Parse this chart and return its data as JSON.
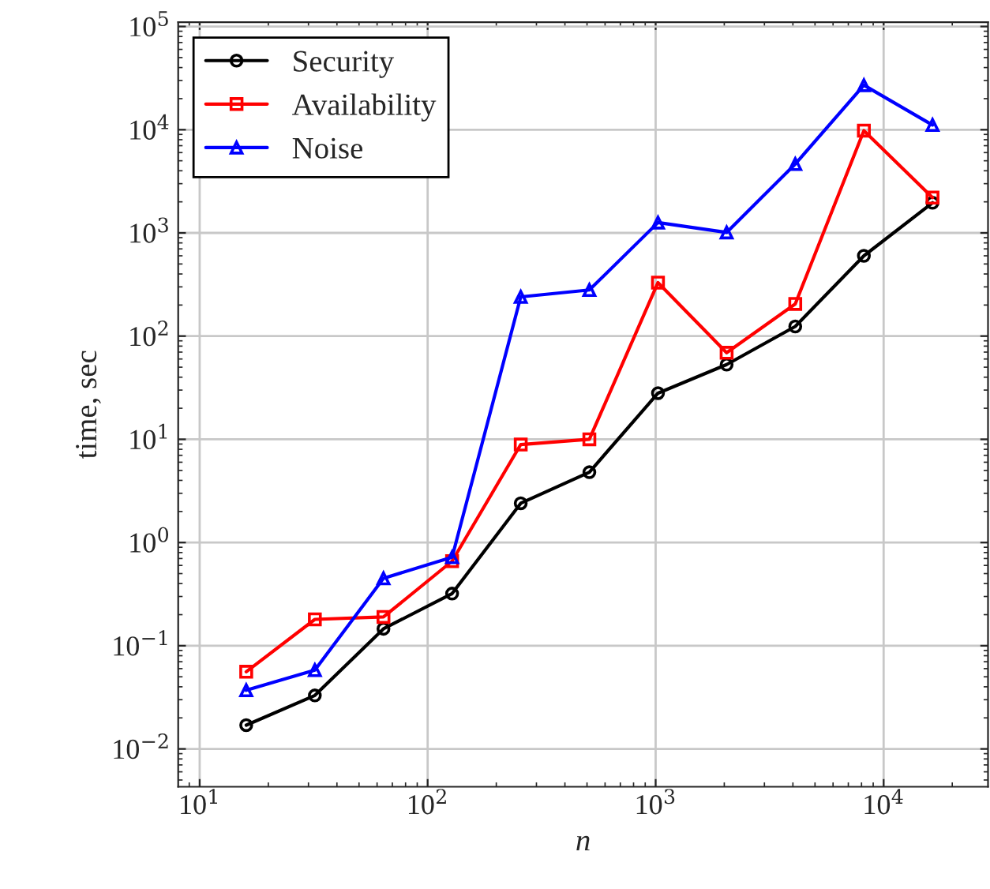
{
  "chart_data": {
    "type": "line",
    "xlabel": "n",
    "ylabel": "time, sec",
    "x": [
      16,
      32,
      64,
      128,
      256,
      512,
      1024,
      2048,
      4096,
      8192,
      16384
    ],
    "series": [
      {
        "name": "Security",
        "color": "#000000",
        "marker": "circle",
        "values": [
          0.017,
          0.033,
          0.146,
          0.32,
          2.4,
          4.8,
          28,
          53,
          124,
          600,
          1960
        ]
      },
      {
        "name": "Availability",
        "color": "#ff0000",
        "marker": "square",
        "values": [
          0.056,
          0.18,
          0.19,
          0.66,
          8.9,
          10,
          330,
          69,
          205,
          9800,
          2200
        ]
      },
      {
        "name": "Noise",
        "color": "#0000ff",
        "marker": "triangle",
        "values": [
          0.037,
          0.058,
          0.45,
          0.72,
          240,
          280,
          1260,
          1010,
          4650,
          27000,
          11100
        ]
      }
    ],
    "log": "xy",
    "xlim": [
      8.05,
      28700
    ],
    "ylim": [
      0.0043,
      110000
    ],
    "xticks": [
      {
        "value": 10,
        "label": "10$^{1}$"
      },
      {
        "value": 100,
        "label": "10$^{2}$"
      },
      {
        "value": 1000,
        "label": "10$^{3}$"
      },
      {
        "value": 10000,
        "label": "10$^{4}$"
      }
    ],
    "yticks": [
      {
        "value": 0.01,
        "label": "10$^{−2}$"
      },
      {
        "value": 0.1,
        "label": "10$^{−1}$"
      },
      {
        "value": 1,
        "label": "10$^{0}$"
      },
      {
        "value": 10,
        "label": "10$^{1}$"
      },
      {
        "value": 100,
        "label": "10$^{2}$"
      },
      {
        "value": 1000,
        "label": "10$^{3}$"
      },
      {
        "value": 10000,
        "label": "10$^{4}$"
      },
      {
        "value": 100000,
        "label": "10$^{5}$"
      }
    ],
    "grid": true,
    "legend": "top left",
    "line_style": "solid"
  }
}
